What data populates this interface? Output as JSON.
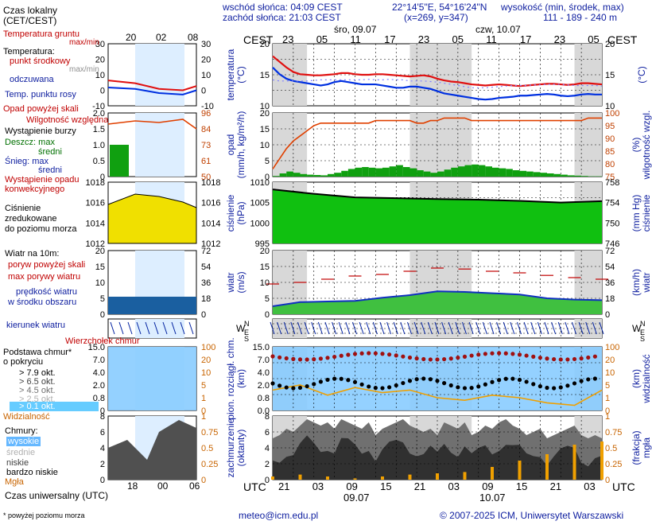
{
  "header": {
    "sunrise": "wschód słońca: 04:09 CEST",
    "sunset": "zachód słońca: 21:03 CEST",
    "coords": "22°14'5\"E, 54°16'24\"N",
    "grid": "(x=269, y=347)",
    "altitude_title": "wysokość (min, środek, max)",
    "altitude_values": "111 - 189 - 240 m",
    "day1": "śro, 09.07",
    "day2": "czw, 10.07",
    "cest_left": "CEST",
    "cest_right": "CEST",
    "utc_left": "UTC",
    "utc_right": "UTC"
  },
  "top_hours": [
    "23",
    "05",
    "11",
    "17",
    "23",
    "05",
    "11",
    "17",
    "23",
    "05"
  ],
  "bottom_hours": [
    "21",
    "03",
    "09",
    "15",
    "21",
    "03",
    "09",
    "15",
    "21",
    "03"
  ],
  "bottom_dates": [
    "09.07",
    "10.07"
  ],
  "legend": {
    "local_time": "Czas lokalny",
    "local_time2": "(CET/CEST)",
    "mini_top_hours": [
      "20",
      "02",
      "08"
    ],
    "mini_bottom_hours": [
      "18",
      "00",
      "06"
    ],
    "utc_label": "Czas uniwersalny (UTC)",
    "footnote": "* powyżej poziomu morza",
    "soil_temp": "Temperatura gruntu",
    "maxmin": "max/min",
    "temp_title": "Temperatura:",
    "temp_mid": "punkt środkowy",
    "temp_maxmin": "max/min",
    "temp_felt": "odczuwana",
    "temp_dew": "Temp. punktu rosy",
    "precip_above": "Opad powyżej skali",
    "humidity": "Wilgotność względna",
    "storm": "Wystąpienie burzy",
    "rain_max": "Deszcz: max",
    "rain_mid": "średni",
    "snow_max": "Śnieg: max",
    "snow_mid": "średni",
    "conv": "Wystąpienie opadu",
    "conv2": "konwekcyjnego",
    "pressure1": "Ciśnienie",
    "pressure2": "zredukowane",
    "pressure3": "do poziomu morza",
    "wind_title": "Wiatr na 10m:",
    "gust_above": "poryw powyżej skali",
    "gust_max": "max porywy wiatru",
    "wind_mid1": "prędkość wiatru",
    "wind_mid2": "w środku obszaru",
    "wind_dir": "kierunek wiatru",
    "cb_top": "Wierzchołek chmur",
    "cloud_base1": "Podstawa chmur*",
    "cloud_base2": "o pokryciu",
    "okt": [
      "> 7.9 okt.",
      "> 6.5 okt.",
      "> 4.5 okt.",
      "> 2.5 okt.",
      "> 0.1 okt."
    ],
    "visibility": "Widzialność",
    "clouds": "Chmury:",
    "high": "wysokie",
    "mid": "średnie",
    "low": "niskie",
    "vlow": "bardzo niskie",
    "fog": "Mgła"
  },
  "panels": {
    "temp": {
      "left_label": "temperatura",
      "left_unit": "(°C)",
      "right_unit": "(°C)",
      "ticks": [
        "20",
        "15",
        "10"
      ],
      "mini_ticks": [
        "30",
        "20",
        "10",
        "0",
        "-10"
      ]
    },
    "precip": {
      "left_label": "opad",
      "left_unit": "(mm/h, kg/m²/h)",
      "right_label": "wilgotność wzgl.",
      "right_unit": "(%)",
      "left_ticks": [
        "20",
        "15",
        "10",
        "5",
        "0"
      ],
      "right_ticks": [
        "100",
        "95",
        "90",
        "85",
        "80",
        "75"
      ],
      "mini_left": [
        "2.0",
        "1.5",
        "1.0",
        "0.5",
        "0"
      ],
      "mini_right": [
        "96",
        "84",
        "73",
        "61",
        "50"
      ]
    },
    "pressure": {
      "left_label": "ciśnienie",
      "left_unit": "(hPa)",
      "right_label": "ciśnienie",
      "right_unit": "(mm Hg)",
      "left_ticks": [
        "1010",
        "1005",
        "1000",
        "995"
      ],
      "right_ticks": [
        "758",
        "754",
        "750",
        "746"
      ],
      "mini_left": [
        "1018",
        "1016",
        "1014",
        "1012"
      ],
      "mini_right": [
        "1018",
        "1016",
        "1014",
        "1012"
      ]
    },
    "wind": {
      "left_label": "wiatr",
      "left_unit": "(m/s)",
      "right_label": "wiatr",
      "right_unit": "(km/h)",
      "left_ticks": [
        "20",
        "15",
        "10",
        "5",
        "0"
      ],
      "right_ticks": [
        "72",
        "54",
        "36",
        "18",
        "0"
      ],
      "mini_left": [
        "20",
        "15",
        "10",
        "5",
        "0"
      ],
      "mini_right": [
        "72",
        "54",
        "36",
        "18",
        "0"
      ]
    },
    "cloudbase": {
      "left_label": "pion. rozciągł. chm.",
      "left_unit": "(km)",
      "right_label": "widzialność",
      "right_unit": "(km)",
      "left_ticks": [
        "15.0",
        "7.0",
        "4.0",
        "2.0",
        "0.8",
        "0.0"
      ],
      "right_ticks": [
        "100",
        "20",
        "10",
        "5",
        "1",
        "0"
      ],
      "mini_left": [
        "15.0",
        "7.0",
        "4.0",
        "2.0",
        "0.8",
        "0"
      ],
      "mini_right": [
        "100",
        "20",
        "10",
        "5",
        "1",
        "0"
      ]
    },
    "clouds": {
      "left_label": "zachmurzenie",
      "left_unit": "(oktanty)",
      "right_label": "mgła",
      "right_unit": "(frakcja)",
      "left_ticks": [
        "8",
        "6",
        "4",
        "2",
        "0"
      ],
      "right_ticks": [
        "1",
        "0.75",
        "0.5",
        "0.25",
        "0"
      ]
    }
  },
  "footer": {
    "email": "meteo@icm.edu.pl",
    "copyright": "© 2007-2025 ICM, Uniwersytet Warszawski"
  },
  "colors": {
    "temp": "#e01010",
    "felt": "#0030e0",
    "dew": "#8080ff",
    "rh": "#e04000",
    "rain": "#10a010",
    "pressure_fill": "#10c010",
    "wind_fill": "#40c040",
    "night": "#d8d8d8",
    "sky": "#88ccff"
  },
  "chart_data": [
    {
      "type": "line",
      "title": "temperatura",
      "ylabel": "(°C)",
      "ylim": [
        9,
        20
      ],
      "x": [
        0,
        1,
        2,
        3,
        4,
        5,
        6,
        7,
        8,
        9,
        10,
        11,
        12,
        13,
        14,
        15,
        16,
        17,
        18,
        19,
        20,
        21,
        22,
        23,
        24,
        25,
        26,
        27,
        28,
        29,
        30,
        31,
        32,
        33,
        34,
        35,
        36,
        37,
        38,
        39,
        40,
        41,
        42,
        43,
        44,
        45,
        46,
        47,
        48
      ],
      "series": [
        {
          "name": "temperatura",
          "values": [
            17.8,
            16.8,
            15.8,
            15.0,
            14.6,
            14.5,
            14.4,
            14.4,
            14.5,
            14.6,
            14.8,
            14.8,
            14.6,
            14.5,
            14.5,
            14.6,
            14.6,
            14.5,
            14.4,
            14.3,
            14.2,
            14.3,
            14.4,
            14.2,
            13.8,
            13.5,
            13.3,
            13.2,
            13.0,
            12.8,
            12.7,
            12.6,
            12.7,
            12.8,
            12.7,
            12.6,
            12.5,
            12.6,
            12.7,
            12.8,
            12.9,
            12.9,
            12.8,
            12.7,
            12.8,
            13.0,
            13.0,
            12.9,
            12.8
          ]
        },
        {
          "name": "odczuwana",
          "values": [
            15.8,
            14.6,
            13.8,
            13.4,
            13.2,
            13.0,
            12.8,
            12.6,
            12.8,
            13.2,
            13.4,
            13.2,
            13.0,
            12.8,
            12.8,
            12.8,
            12.6,
            12.4,
            12.2,
            12.2,
            12.4,
            12.4,
            12.2,
            12.0,
            11.6,
            11.2,
            11.0,
            10.8,
            10.6,
            10.4,
            10.2,
            10.1,
            10.2,
            10.4,
            10.5,
            10.6,
            10.8,
            10.8,
            10.9,
            11.0,
            11.1,
            11.0,
            10.8,
            10.7,
            10.8,
            11.0,
            11.1,
            11.0,
            11.0
          ]
        },
        {
          "name": "punkt rosy",
          "values": [
            13.6,
            13.4,
            13.4,
            13.4,
            13.4,
            13.4,
            13.5,
            13.6,
            13.6,
            13.6,
            13.6,
            13.6,
            13.6,
            13.6,
            13.7,
            13.6,
            13.6,
            13.7,
            13.6,
            13.6,
            13.4,
            13.4,
            13.4,
            13.3,
            13.2,
            13.0,
            12.8,
            12.6,
            12.4,
            12.2,
            12.2,
            12.2,
            12.3,
            12.4,
            12.5,
            12.6,
            12.6,
            12.6,
            12.7,
            12.7,
            12.8,
            12.8,
            12.8,
            12.7,
            12.6,
            12.6,
            12.6,
            12.6,
            12.5
          ]
        }
      ]
    },
    {
      "type": "bar",
      "title": "opad",
      "ylabel": "(mm/h, kg/m²/h)",
      "ylim": [
        0,
        20
      ],
      "x": [
        0,
        1,
        2,
        3,
        4,
        5,
        6,
        7,
        8,
        9,
        10,
        11,
        12,
        13,
        14,
        15,
        16,
        17,
        18,
        19,
        20,
        21,
        22,
        23,
        24,
        25,
        26,
        27,
        28,
        29,
        30,
        31,
        32,
        33,
        34,
        35,
        36,
        37,
        38,
        39,
        40,
        41,
        42,
        43,
        44,
        45,
        46,
        47,
        48
      ],
      "series": [
        {
          "name": "opad",
          "values": [
            0.2,
            1.0,
            1.6,
            1.2,
            0.8,
            0.6,
            0.5,
            0.4,
            0.8,
            1.2,
            1.8,
            2.4,
            2.8,
            3.0,
            2.8,
            2.6,
            2.8,
            3.2,
            3.6,
            3.0,
            2.6,
            2.0,
            1.6,
            1.2,
            1.6,
            2.2,
            2.8,
            3.2,
            3.6,
            3.8,
            3.6,
            3.2,
            2.8,
            2.6,
            2.4,
            2.0,
            1.8,
            1.6,
            1.4,
            1.2,
            1.0,
            0.8,
            0.6,
            0.4,
            0.3,
            0.2,
            0.1,
            0.1,
            0.0
          ]
        },
        {
          "name": "wilgotność wzgl.",
          "values": [
            78,
            82,
            86,
            89,
            91,
            93,
            95,
            96,
            96,
            96,
            96,
            96,
            96,
            96,
            96,
            97,
            97,
            97,
            97,
            97,
            97,
            96,
            96,
            97,
            97,
            98,
            98,
            98,
            98,
            97,
            97,
            97,
            97,
            97,
            97,
            97,
            97,
            97,
            97,
            97,
            97,
            97,
            97,
            97,
            97,
            97,
            98,
            98,
            98
          ]
        }
      ]
    },
    {
      "type": "area",
      "title": "ciśnienie",
      "ylabel": "(hPa)",
      "ylim": [
        990,
        1011
      ],
      "x": [
        0,
        6,
        12,
        18,
        24,
        30,
        36,
        42,
        48
      ],
      "series": [
        {
          "name": "ciśnienie",
          "values": [
            1008.5,
            1007.0,
            1005.8,
            1005.5,
            1005.2,
            1005.0,
            1004.6,
            1004.0,
            1004.5
          ]
        }
      ]
    },
    {
      "type": "line",
      "title": "wiatr",
      "ylabel": "(m/s)",
      "ylim": [
        0,
        20
      ],
      "x": [
        0,
        4,
        8,
        12,
        16,
        20,
        24,
        28,
        32,
        36,
        40,
        44,
        48
      ],
      "series": [
        {
          "name": "prędkość",
          "values": [
            2.5,
            3.8,
            4.0,
            4.2,
            5.2,
            6.0,
            7.2,
            7.0,
            6.6,
            6.2,
            5.0,
            4.6,
            4.4
          ]
        },
        {
          "name": "porywy",
          "values": [
            9.5,
            10.0,
            11.0,
            12.0,
            12.5,
            13.5,
            14.5,
            14.2,
            13.5,
            13.0,
            12.2,
            11.5,
            11.0
          ]
        }
      ]
    },
    {
      "type": "line",
      "title": "widzialność",
      "ylabel": "(km)",
      "ylim": [
        0,
        100
      ],
      "x": [
        0,
        4,
        8,
        12,
        16,
        20,
        24,
        28,
        32,
        36,
        40,
        44,
        48
      ],
      "series": [
        {
          "name": "widzialność",
          "values": [
            8,
            10,
            6,
            9,
            7,
            8,
            5,
            4,
            6,
            5,
            3,
            2,
            8
          ]
        }
      ]
    },
    {
      "type": "bar",
      "title": "mgła",
      "ylabel": "(frakcja)",
      "ylim": [
        0,
        1
      ],
      "x": [
        0,
        4,
        8,
        12,
        16,
        20,
        24,
        28,
        32,
        36,
        40,
        44,
        48
      ],
      "series": [
        {
          "name": "mgła",
          "values": [
            0.05,
            0.08,
            0.05,
            0.02,
            0.05,
            0.08,
            0.1,
            0.12,
            0.2,
            0.3,
            0.4,
            0.55,
            0.6
          ]
        }
      ]
    }
  ]
}
